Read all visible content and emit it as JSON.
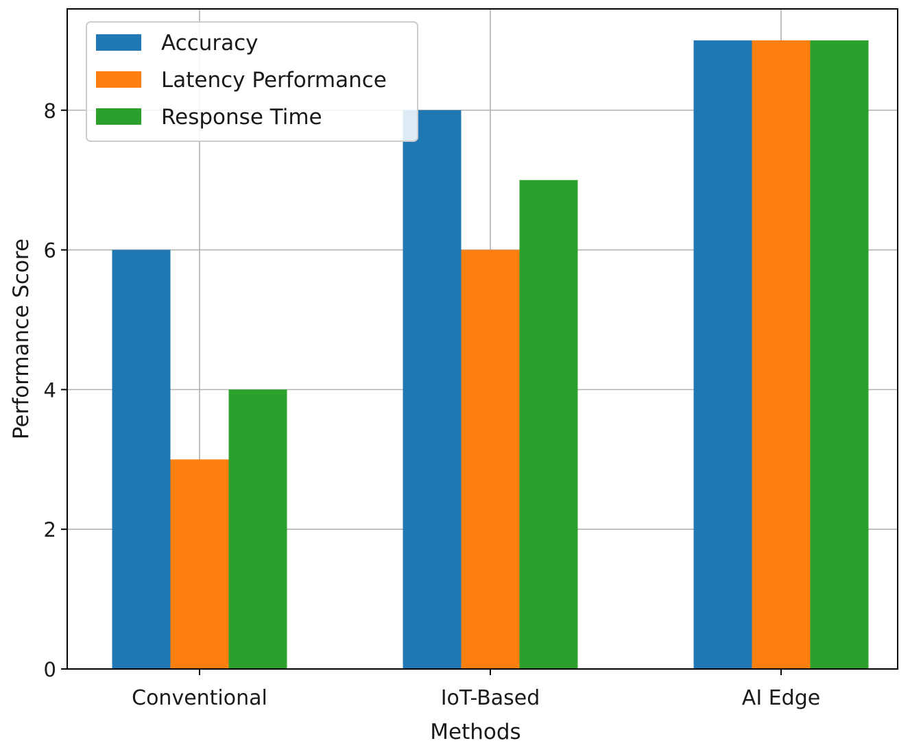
{
  "chart_data": {
    "type": "bar",
    "title": "",
    "xlabel": "Methods",
    "ylabel": "Performance Score",
    "categories": [
      "Conventional",
      "IoT-Based",
      "AI Edge"
    ],
    "series": [
      {
        "name": "Accuracy",
        "values": [
          6,
          8,
          9
        ],
        "color": "#1f77b4"
      },
      {
        "name": "Latency Performance",
        "values": [
          3,
          6,
          9
        ],
        "color": "#ff7f0e"
      },
      {
        "name": "Response Time",
        "values": [
          4,
          7,
          9
        ],
        "color": "#2ca02c"
      }
    ],
    "ylim": [
      0,
      9.45
    ],
    "yticks": [
      0,
      2,
      4,
      6,
      8
    ],
    "grid": true,
    "legend_position": "top-left"
  }
}
